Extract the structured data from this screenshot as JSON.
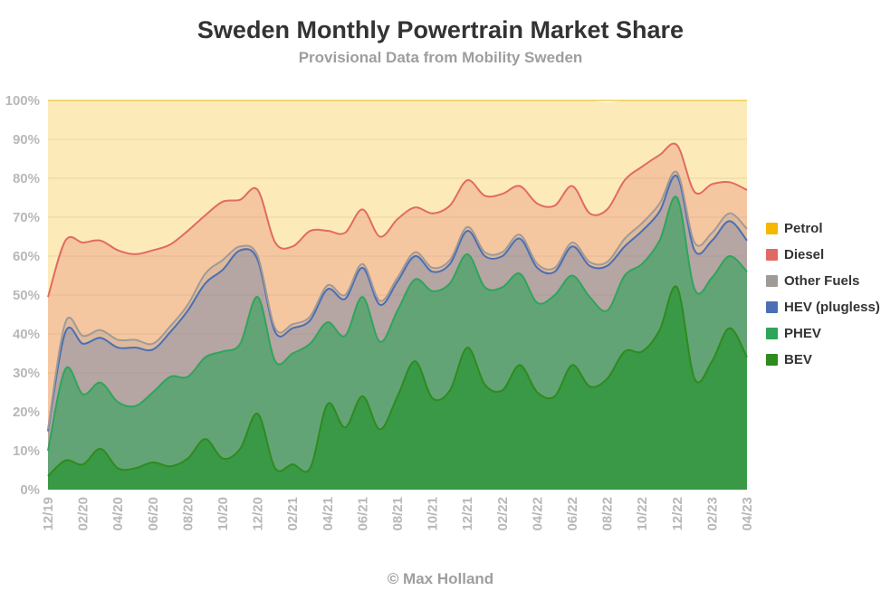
{
  "chart_data": {
    "type": "area",
    "stacked": true,
    "title": "Sweden Monthly Powertrain Market Share",
    "subtitle": "Provisional Data from Mobility Sweden",
    "credit": "© Max Holland",
    "xlabel": "",
    "ylabel": "",
    "ylim": [
      0,
      100
    ],
    "yticks": [
      "0%",
      "10%",
      "20%",
      "30%",
      "40%",
      "50%",
      "60%",
      "70%",
      "80%",
      "90%",
      "100%"
    ],
    "xticks": [
      "12/19",
      "02/20",
      "04/20",
      "06/20",
      "08/20",
      "10/20",
      "12/20",
      "02/21",
      "04/21",
      "06/21",
      "08/21",
      "10/21",
      "12/21",
      "02/22",
      "04/22",
      "06/22",
      "08/22",
      "10/22",
      "12/22",
      "02/23",
      "04/23"
    ],
    "grid": true,
    "legend_position": "right",
    "x": [
      "12/19",
      "01/20",
      "02/20",
      "03/20",
      "04/20",
      "05/20",
      "06/20",
      "07/20",
      "08/20",
      "09/20",
      "10/20",
      "11/20",
      "12/20",
      "01/21",
      "02/21",
      "03/21",
      "04/21",
      "05/21",
      "06/21",
      "07/21",
      "08/21",
      "09/21",
      "10/21",
      "11/21",
      "12/21",
      "01/22",
      "02/22",
      "03/22",
      "04/22",
      "05/22",
      "06/22",
      "07/22",
      "08/22",
      "09/22",
      "10/22",
      "11/22",
      "12/22",
      "01/23",
      "02/23",
      "03/23",
      "04/23"
    ],
    "series": [
      {
        "name": "BEV",
        "color": "#2e8b1e",
        "values": [
          3.5,
          7.5,
          6.5,
          10.5,
          5.5,
          5.5,
          7,
          6,
          8,
          13,
          8,
          10.5,
          19.5,
          5.5,
          6.5,
          5.5,
          22,
          16,
          24,
          15.5,
          24,
          33,
          23.5,
          25.5,
          36.5,
          27,
          25.5,
          32,
          25,
          24,
          32,
          26.5,
          28.5,
          35.5,
          35.5,
          41,
          52,
          28.5,
          33,
          41.5,
          34
        ]
      },
      {
        "name": "PHEV",
        "color": "#2ea55a",
        "values": [
          6.5,
          23.5,
          18,
          17,
          17,
          16,
          18,
          23,
          21,
          21,
          27.5,
          27,
          30,
          27.5,
          28.5,
          32,
          21,
          23.5,
          25.5,
          22.5,
          22,
          21,
          27.5,
          27.5,
          24,
          25,
          26.5,
          23.5,
          23,
          26,
          23,
          23,
          17.5,
          19.5,
          22.5,
          23,
          23,
          23,
          21.5,
          18.5,
          22
        ]
      },
      {
        "name": "HEV (plugless)",
        "color": "#4a6fb5",
        "values": [
          5,
          9.5,
          13,
          11.5,
          14,
          15,
          11,
          11.5,
          17,
          19,
          21,
          24,
          9.5,
          7.5,
          6.5,
          6,
          8.5,
          9.5,
          7.5,
          9.5,
          7.5,
          6,
          5,
          5,
          6,
          8,
          8,
          9,
          9,
          6,
          7.5,
          8,
          11.5,
          7.5,
          8.5,
          7.5,
          5.5,
          10,
          9.5,
          9,
          8
        ]
      },
      {
        "name": "Other Fuels",
        "color": "#a09a96",
        "values": [
          0.5,
          2.5,
          2,
          2,
          2,
          2,
          1.5,
          1.5,
          1.5,
          2.5,
          2.5,
          1,
          1,
          1,
          1,
          1,
          1,
          1,
          1,
          1,
          1,
          1,
          1,
          1,
          1,
          1,
          1,
          1,
          1,
          1,
          1,
          1,
          1,
          2,
          2,
          2,
          1,
          2,
          2,
          2,
          3
        ]
      },
      {
        "name": "Diesel",
        "color": "#e26a64",
        "values": [
          34,
          21,
          24,
          23,
          23,
          22,
          24,
          21,
          19,
          15,
          15,
          12,
          17,
          22,
          20,
          22,
          14,
          16,
          14,
          16.5,
          15,
          11.5,
          14,
          14,
          12,
          14.5,
          15,
          12.5,
          15.5,
          16,
          14.5,
          12.5,
          13.5,
          15,
          14.5,
          12.5,
          7,
          13,
          12.5,
          8,
          10
        ]
      },
      {
        "name": "Petrol",
        "color": "#f5b700",
        "values": [
          50.5,
          36,
          36.5,
          36,
          38.5,
          40,
          38.5,
          37,
          33.5,
          29.5,
          26,
          25.5,
          23,
          36.5,
          37.5,
          33.5,
          33.5,
          34,
          28,
          35,
          30.5,
          27.5,
          29,
          27,
          20.5,
          24.5,
          24,
          22,
          26.5,
          27,
          22,
          29,
          27.5,
          20.5,
          17,
          14,
          11.5,
          23.5,
          21.5,
          21,
          23
        ]
      }
    ]
  }
}
